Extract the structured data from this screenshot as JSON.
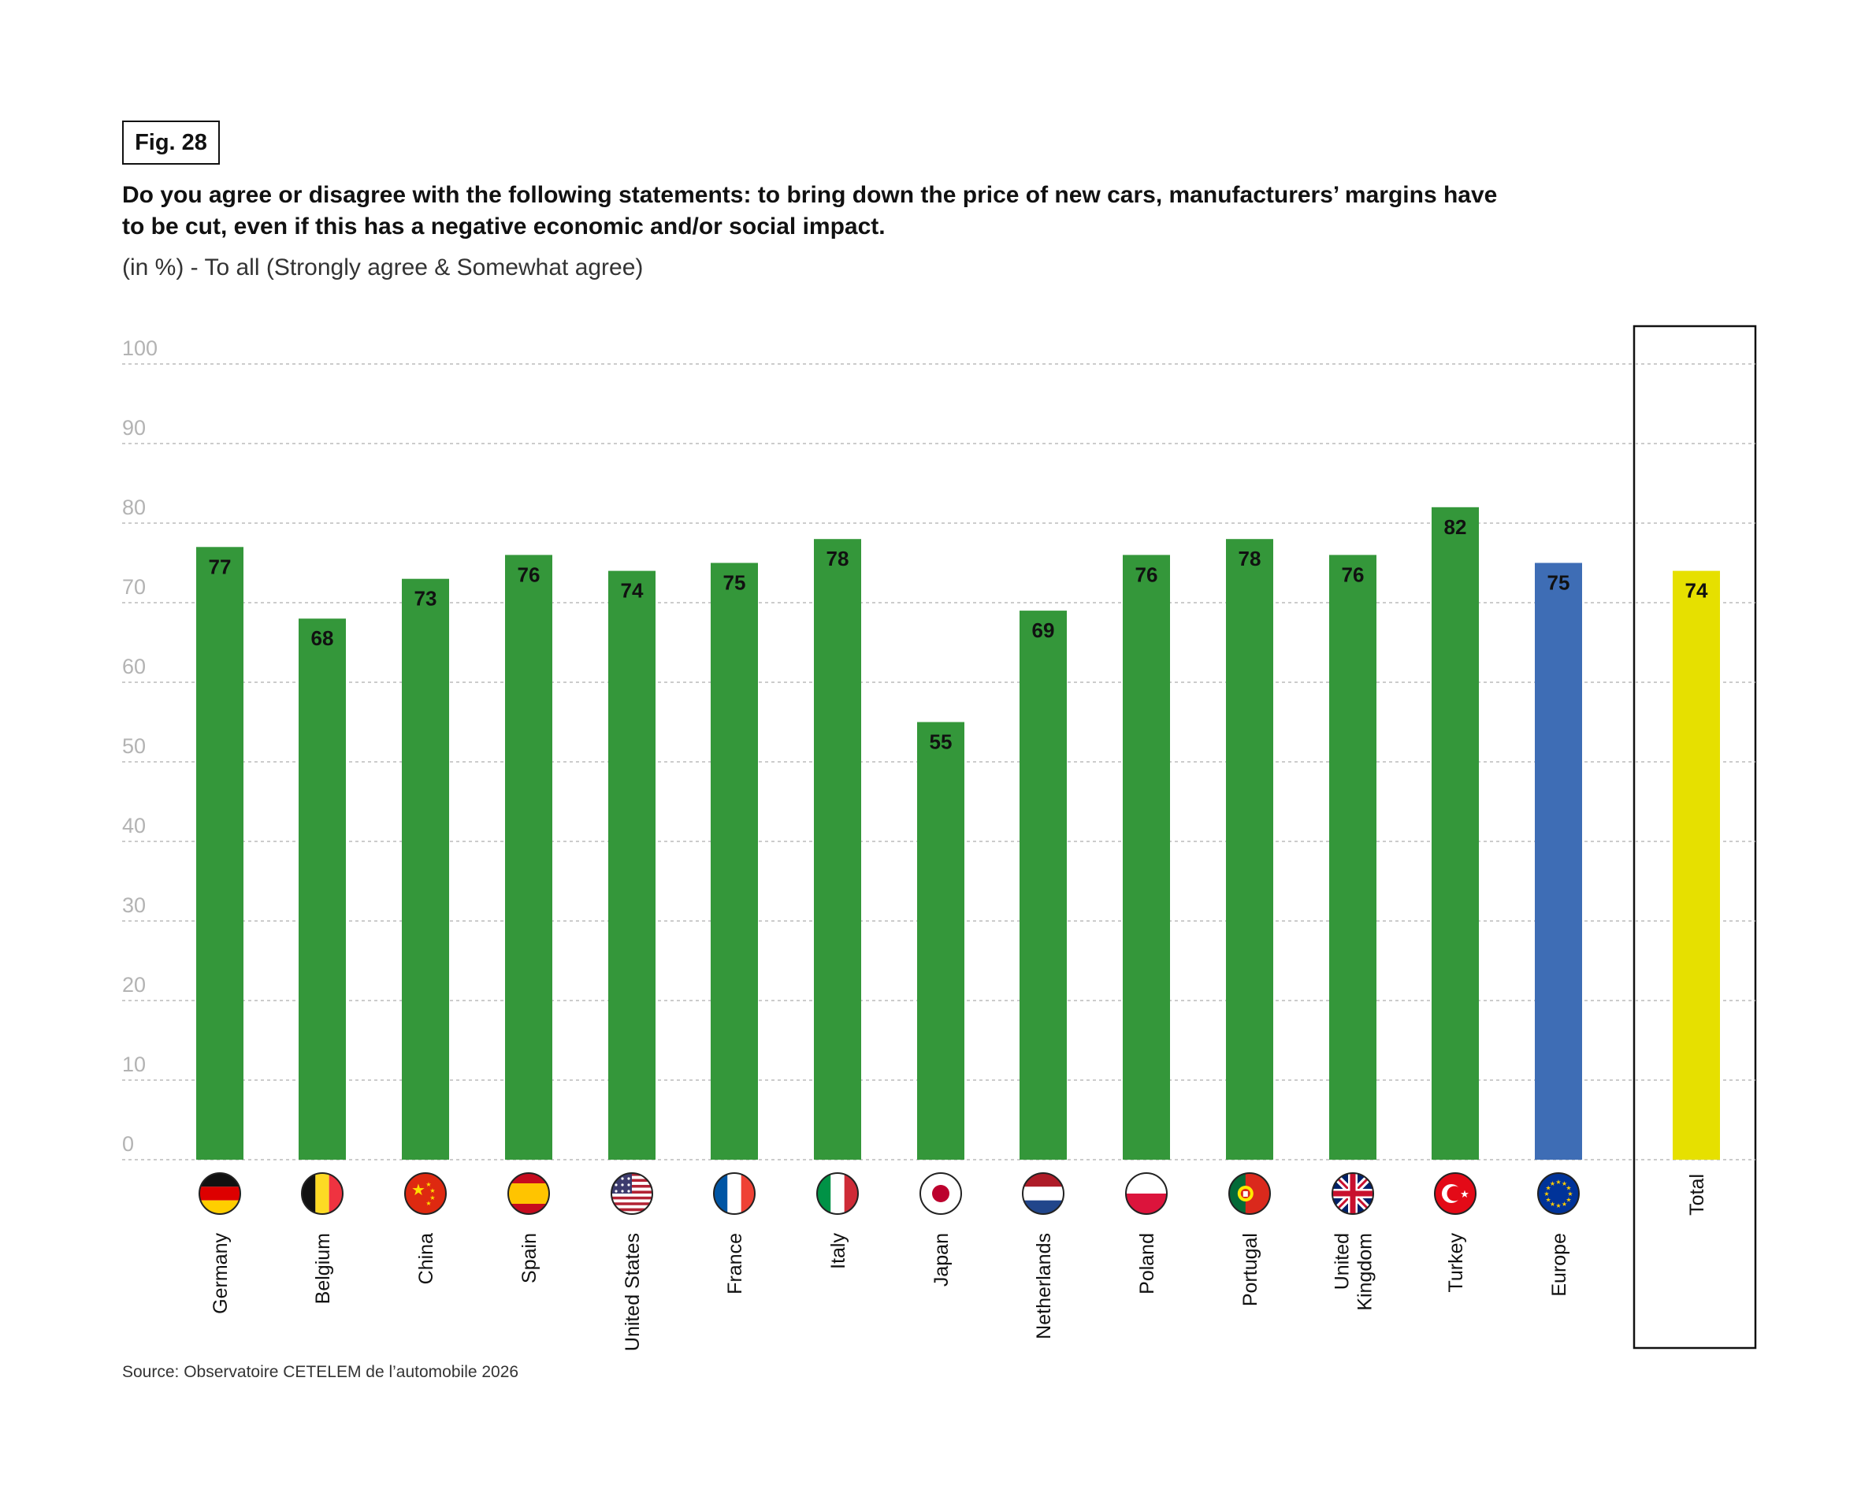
{
  "figure": {
    "label": "Fig. 28",
    "title": "Do you agree or disagree with the following statements: to bring down the price of new cars, manufacturers’ margins have to be cut, even if this has a negative economic and/or social impact.",
    "subtitle": "(in %) - To all (Strongly agree & Somewhat agree)",
    "source": "Source: Observatoire CETELEM de l’automobile 2026"
  },
  "colors": {
    "country": "#34973a",
    "europe": "#3e6db5",
    "total": "#e6e000",
    "grid": "#bbbbbb",
    "tick": "#b3b3b3"
  },
  "chart_data": {
    "type": "bar",
    "categories": [
      "Germany",
      "Belgium",
      "China",
      "Spain",
      "United States",
      "France",
      "Italy",
      "Japan",
      "Netherlands",
      "Poland",
      "Portugal",
      "United Kingdom",
      "Turkey",
      "Europe",
      "Total"
    ],
    "category_label_lines": [
      [
        "Germany"
      ],
      [
        "Belgium"
      ],
      [
        "China"
      ],
      [
        "Spain"
      ],
      [
        "United States"
      ],
      [
        "France"
      ],
      [
        "Italy"
      ],
      [
        "Japan"
      ],
      [
        "Netherlands"
      ],
      [
        "Poland"
      ],
      [
        "Portugal"
      ],
      [
        "United",
        "Kingdom"
      ],
      [
        "Turkey"
      ],
      [
        "Europe"
      ],
      [
        "Total"
      ]
    ],
    "values": [
      77,
      68,
      73,
      76,
      74,
      75,
      78,
      55,
      69,
      76,
      78,
      76,
      82,
      75,
      74
    ],
    "bar_kind": [
      "country",
      "country",
      "country",
      "country",
      "country",
      "country",
      "country",
      "country",
      "country",
      "country",
      "country",
      "country",
      "country",
      "europe",
      "total"
    ],
    "flag_icons": [
      "germany-flag-icon",
      "belgium-flag-icon",
      "china-flag-icon",
      "spain-flag-icon",
      "united-states-flag-icon",
      "france-flag-icon",
      "italy-flag-icon",
      "japan-flag-icon",
      "netherlands-flag-icon",
      "poland-flag-icon",
      "portugal-flag-icon",
      "united-kingdom-flag-icon",
      "turkey-flag-icon",
      "europe-flag-icon",
      null
    ],
    "yticks": [
      0,
      10,
      20,
      30,
      40,
      50,
      60,
      70,
      80,
      90,
      100
    ],
    "ylim": [
      0,
      100
    ],
    "grid": true,
    "title": "Do you agree or disagree with the following statements: to bring down the price of new cars, manufacturers’ margins have to be cut, even if this has a negative economic and/or social impact.",
    "xlabel": "",
    "ylabel": "(in %)"
  }
}
